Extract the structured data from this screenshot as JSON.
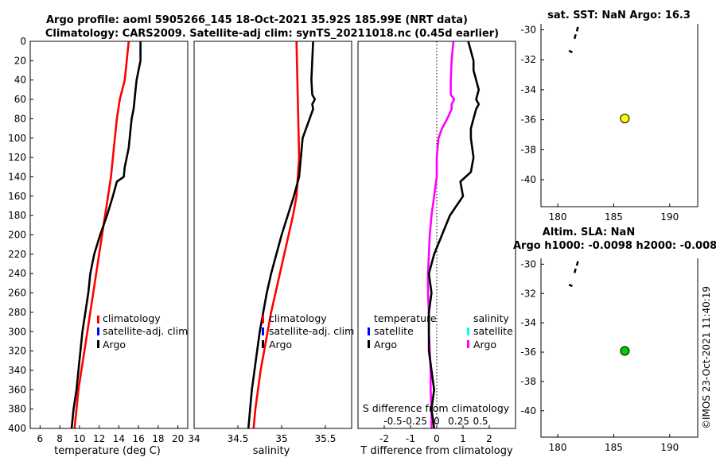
{
  "title": {
    "line1": "Argo profile: aoml 5905266_145 18-Oct-2021 35.92S 185.99E (NRT data)",
    "line2": "Climatology: CARS2009. Satellite-adj clim: synTS_20211018.nc (0.45d earlier)"
  },
  "watermark": "©IMOS 23-Oct-2021 11:40:19",
  "colors": {
    "argo": "#000000",
    "climatology": "#ff0000",
    "satellite": "#0000ff",
    "s_satellite": "#00ffff",
    "s_diff": "#ff00ff",
    "zero_line": "#000000",
    "sst_marker": "#ffff00",
    "sla_marker": "#00cc00"
  },
  "chart_data": [
    {
      "type": "line",
      "name": "temperature-panel",
      "xlabel": "temperature (deg C)",
      "ylabel": "",
      "xlim": [
        5,
        21
      ],
      "ylim": [
        0,
        400
      ],
      "y_reversed": true,
      "xticks": [
        "6",
        "8",
        "10",
        "12",
        "14",
        "16",
        "18",
        "20"
      ],
      "yticks": [
        "0",
        "20",
        "40",
        "60",
        "80",
        "100",
        "120",
        "140",
        "160",
        "180",
        "200",
        "220",
        "240",
        "260",
        "280",
        "300",
        "320",
        "340",
        "360",
        "380",
        "400"
      ],
      "legend": [
        "climatology",
        "satellite-adj. clim",
        "Argo"
      ],
      "series": [
        {
          "name": "Argo",
          "depth": [
            0,
            20,
            30,
            40,
            50,
            60,
            70,
            80,
            90,
            100,
            110,
            120,
            130,
            140,
            145,
            160,
            180,
            200,
            220,
            240,
            260,
            280,
            300,
            320,
            340,
            360,
            380,
            400
          ],
          "values": [
            16.2,
            16.2,
            16.0,
            15.8,
            15.7,
            15.6,
            15.5,
            15.3,
            15.2,
            15.1,
            15.0,
            14.8,
            14.6,
            14.5,
            13.8,
            13.4,
            12.8,
            12.1,
            11.5,
            11.1,
            10.9,
            10.6,
            10.3,
            10.1,
            9.9,
            9.7,
            9.4,
            9.2
          ]
        },
        {
          "name": "climatology",
          "depth": [
            0,
            20,
            40,
            60,
            80,
            100,
            120,
            140,
            160,
            180,
            200,
            220,
            240,
            260,
            280,
            300,
            320,
            340,
            360,
            380,
            400
          ],
          "values": [
            15.0,
            14.8,
            14.6,
            14.1,
            13.8,
            13.6,
            13.4,
            13.2,
            12.9,
            12.6,
            12.3,
            12.0,
            11.7,
            11.4,
            11.1,
            10.8,
            10.5,
            10.2,
            9.9,
            9.7,
            9.5
          ]
        }
      ]
    },
    {
      "type": "line",
      "name": "salinity-panel",
      "xlabel": "salinity",
      "xlim": [
        34,
        35.8
      ],
      "ylim": [
        0,
        400
      ],
      "y_reversed": true,
      "xticks": [
        "34",
        "34.5",
        "35",
        "35.5"
      ],
      "legend": [
        "climatology",
        "satellite-adj. clim",
        "Argo"
      ],
      "series": [
        {
          "name": "Argo",
          "depth": [
            0,
            20,
            40,
            55,
            60,
            65,
            70,
            80,
            90,
            100,
            120,
            140,
            160,
            180,
            200,
            220,
            240,
            260,
            280,
            300,
            320,
            340,
            360,
            380,
            400
          ],
          "values": [
            35.36,
            35.35,
            35.34,
            35.35,
            35.38,
            35.35,
            35.36,
            35.32,
            35.28,
            35.24,
            35.22,
            35.2,
            35.14,
            35.07,
            35.0,
            34.94,
            34.88,
            34.83,
            34.79,
            34.75,
            34.72,
            34.69,
            34.66,
            34.64,
            34.62
          ]
        },
        {
          "name": "climatology",
          "depth": [
            0,
            40,
            80,
            120,
            160,
            180,
            200,
            220,
            240,
            260,
            280,
            300,
            320,
            340,
            360,
            380,
            400
          ],
          "values": [
            35.17,
            35.18,
            35.19,
            35.2,
            35.17,
            35.13,
            35.08,
            35.03,
            34.98,
            34.93,
            34.88,
            34.84,
            34.8,
            34.76,
            34.73,
            34.7,
            34.68
          ]
        }
      ]
    },
    {
      "type": "line",
      "name": "difference-panel",
      "xlabel": "T difference from climatology",
      "xlabel_top": "S difference from climatology",
      "xlim": [
        -3,
        3
      ],
      "ylim": [
        0,
        400
      ],
      "y_reversed": true,
      "xticks": [
        "-2",
        "-1",
        "0",
        "1",
        "2"
      ],
      "xticks_top": [
        "-0.5",
        "-0.25",
        "0",
        "0.25",
        "0.5"
      ],
      "legend_t": [
        "temperature",
        "satellite",
        "Argo"
      ],
      "legend_s": [
        "salinity",
        "satellite",
        "Argo"
      ],
      "series": [
        {
          "name": "T Argo",
          "depth": [
            0,
            20,
            30,
            40,
            50,
            60,
            65,
            70,
            80,
            90,
            100,
            120,
            135,
            145,
            160,
            180,
            200,
            220,
            240,
            260,
            280,
            300,
            320,
            340,
            360,
            380,
            400
          ],
          "values": [
            1.2,
            1.4,
            1.4,
            1.5,
            1.6,
            1.5,
            1.6,
            1.5,
            1.4,
            1.3,
            1.3,
            1.4,
            1.3,
            0.9,
            1.0,
            0.5,
            0.2,
            -0.1,
            -0.3,
            -0.2,
            -0.3,
            -0.3,
            -0.3,
            -0.2,
            -0.1,
            -0.2,
            -0.1
          ]
        },
        {
          "name": "S Argo",
          "depth": [
            0,
            20,
            40,
            55,
            60,
            65,
            70,
            80,
            90,
            100,
            120,
            140,
            160,
            180,
            200,
            220,
            240,
            260,
            280,
            300,
            320,
            340,
            360,
            380,
            400
          ],
          "values": [
            0.19,
            0.17,
            0.16,
            0.16,
            0.2,
            0.17,
            0.17,
            0.12,
            0.06,
            0.02,
            0.0,
            0.0,
            -0.03,
            -0.06,
            -0.08,
            -0.09,
            -0.1,
            -0.1,
            -0.09,
            -0.09,
            -0.08,
            -0.07,
            -0.07,
            -0.06,
            -0.06
          ]
        }
      ]
    },
    {
      "type": "scatter",
      "name": "sst-map",
      "title": "sat. SST: NaN Argo: 16.3",
      "xlim": [
        178.5,
        192.5
      ],
      "ylim": [
        -41.8,
        -29.6
      ],
      "xticks": [
        "180",
        "185",
        "190"
      ],
      "yticks": [
        "-30",
        "-32",
        "-34",
        "-36",
        "-38",
        "-40"
      ],
      "points": [
        {
          "lon": 185.99,
          "lat": -35.92
        }
      ],
      "coast_segments": [
        {
          "lon": [
            181.7,
            181.8
          ],
          "lat": [
            -30.1,
            -29.8
          ]
        },
        {
          "lon": [
            181.5,
            181.6
          ],
          "lat": [
            -30.6,
            -30.3
          ]
        },
        {
          "lon": [
            181.0,
            181.3
          ],
          "lat": [
            -31.4,
            -31.5
          ]
        }
      ]
    },
    {
      "type": "scatter",
      "name": "sla-map",
      "title": "Altim. SLA: NaN",
      "subtitle": "Argo h1000: -0.0098 h2000: -0.008",
      "xlim": [
        178.5,
        192.5
      ],
      "ylim": [
        -41.8,
        -29.6
      ],
      "xticks": [
        "180",
        "185",
        "190"
      ],
      "yticks": [
        "-30",
        "-32",
        "-34",
        "-36",
        "-38",
        "-40"
      ],
      "points": [
        {
          "lon": 185.99,
          "lat": -35.92
        }
      ],
      "coast_segments": [
        {
          "lon": [
            181.7,
            181.8
          ],
          "lat": [
            -30.1,
            -29.8
          ]
        },
        {
          "lon": [
            181.5,
            181.6
          ],
          "lat": [
            -30.6,
            -30.3
          ]
        },
        {
          "lon": [
            181.0,
            181.3
          ],
          "lat": [
            -31.4,
            -31.5
          ]
        }
      ]
    }
  ]
}
